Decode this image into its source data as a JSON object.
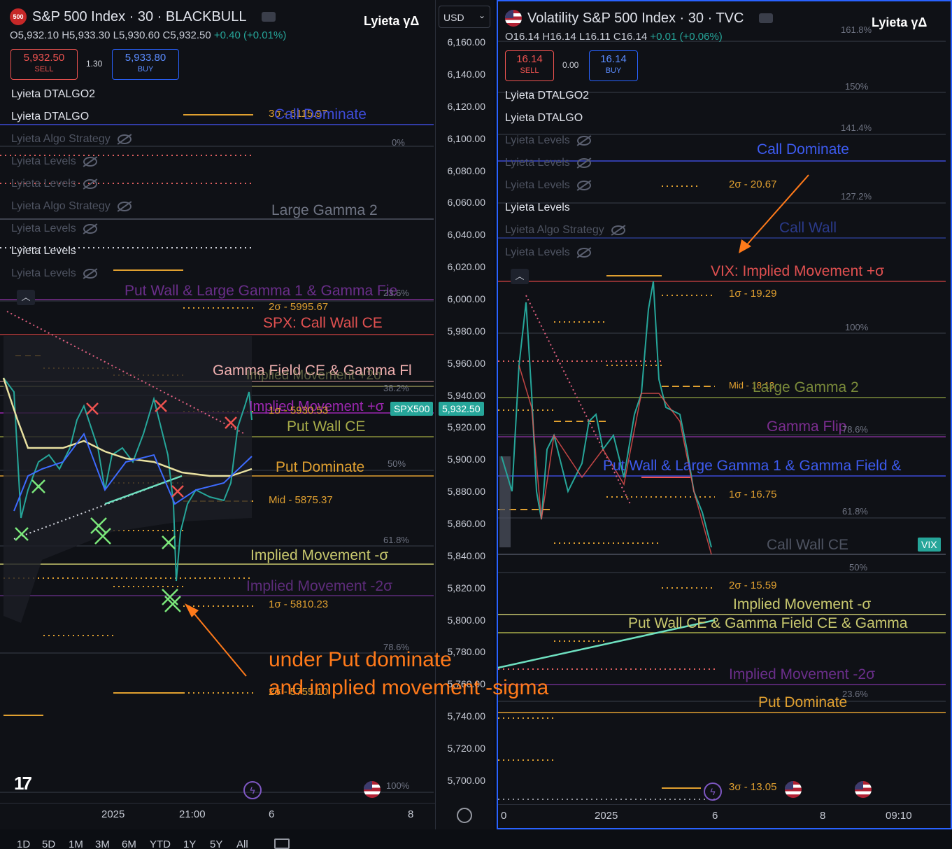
{
  "left": {
    "badge": "500",
    "title": "S&P 500 Index · 30 · BLACKBULL",
    "brand": "Lyieta γΔ",
    "ohlc": "O5,932.10 H5,933.30 L5,930.60 C5,932.50",
    "change": "+0.40 (+0.01%)",
    "sell": {
      "price": "5,932.50",
      "label": "SELL"
    },
    "spread": "1.30",
    "buy": {
      "price": "5,933.80",
      "label": "BUY"
    },
    "indicators": [
      "Lyieta DTALGO2",
      "Lyieta DTALGO",
      "Lyieta Algo Strategy",
      "Lyieta Levels",
      "Lyieta Levels",
      "Lyieta Algo Strategy",
      "Lyieta Levels",
      "Lyieta Levels",
      "Lyieta Levels"
    ],
    "levels": {
      "call_dominate": "Call Dominate",
      "call_dominate_val": "3σ - 6115.97",
      "large_gamma_2": "Large Gamma 2",
      "put_wall_gamma": "Put Wall & Large Gamma 1 & Gamma Fie",
      "two_sigma_up": "2σ - 5995.67",
      "spx_call_wall": "SPX: Call Wall CE",
      "gamma_field": "Gamma Field CE & Gamma Fl",
      "implied_plus2": "Implied Movement +2σ",
      "implied_plus": "Implied Movement +σ",
      "one_sigma_up": "1σ - 5930.53",
      "put_wall_ce": "Put Wall CE",
      "put_dominate": "Put Dominate",
      "mid": "Mid - 5875.37",
      "implied_minus": "Implied Movement -σ",
      "implied_minus2": "Implied Movement -2σ",
      "one_sigma_down": "1σ - 5810.23",
      "two_sigma_down": "2σ - 5755.10"
    },
    "fibs": [
      "0%",
      "23.6%",
      "38.2%",
      "50%",
      "61.8%",
      "78.6%",
      "100%"
    ],
    "last_symbol": "SPX500",
    "last_price": "5,932.50",
    "xticks": [
      "2025",
      "21:00",
      "6",
      "8"
    ]
  },
  "axis": {
    "currency": "USD",
    "ticks": [
      "6,160.00",
      "6,140.00",
      "6,120.00",
      "6,100.00",
      "6,080.00",
      "6,060.00",
      "6,040.00",
      "6,020.00",
      "6,000.00",
      "5,980.00",
      "5,960.00",
      "5,940.00",
      "5,920.00",
      "5,900.00",
      "5,880.00",
      "5,860.00",
      "5,840.00",
      "5,820.00",
      "5,800.00",
      "5,780.00",
      "5,760.00",
      "5,740.00",
      "5,720.00",
      "5,700.00"
    ]
  },
  "right": {
    "title": "Volatility S&P 500 Index · 30 · TVC",
    "brand": "Lyieta γΔ",
    "ohlc": "O16.14 H16.14 L16.11 C16.14",
    "change": "+0.01 (+0.06%)",
    "sell": {
      "price": "16.14",
      "label": "SELL"
    },
    "spread": "0.00",
    "buy": {
      "price": "16.14",
      "label": "BUY"
    },
    "indicators": [
      "Lyieta DTALGO2",
      "Lyieta DTALGO",
      "Lyieta Levels",
      "Lyieta Levels",
      "Lyieta Levels",
      "Lyieta Levels",
      "Lyieta Algo Strategy",
      "Lyieta Levels"
    ],
    "levels": {
      "call_dominate": "Call Dominate",
      "two_sigma_up": "2σ - 20.67",
      "call_wall": "Call Wall",
      "vix_implied": "VIX: Implied Movement +σ",
      "one_sigma_up": "1σ - 19.29",
      "mid": "Mid - 18.13",
      "large_gamma_2": "Large Gamma 2",
      "gamma_flip": "Gamma Flip",
      "put_wall_gamma": "Put Wall & Large Gamma 1 & Gamma Field &",
      "one_sigma_down": "1σ - 16.75",
      "call_wall_ce": "Call Wall CE",
      "two_sigma_down": "2σ - 15.59",
      "implied_minus": "Implied Movement -σ",
      "put_wall_ce_gamma": "Put Wall CE & Gamma Field CE & Gamma",
      "implied_minus2": "Implied Movement -2σ",
      "put_dominate": "Put Dominate",
      "three_sigma_down": "3σ - 13.05"
    },
    "fibs": [
      "161.8%",
      "150%",
      "141.4%",
      "127.2%",
      "100%",
      "78.6%",
      "61.8%",
      "50%",
      "23.6%"
    ],
    "last_symbol": "VIX",
    "xticks": [
      "0",
      "2025",
      "6",
      "8",
      "09:10"
    ]
  },
  "annotation": {
    "line1": "under Put dominate",
    "line2": "and implied movement -sigma"
  },
  "ranges": [
    "1D",
    "5D",
    "1M",
    "3M",
    "6M",
    "YTD",
    "1Y",
    "5Y",
    "All"
  ],
  "colors": {
    "accent": "#2962ff",
    "up": "#26a69a",
    "down": "#ef5350",
    "orange": "#ff7a1a",
    "gold": "#e0a030",
    "purple": "#9c27b0",
    "olive": "#c8c86e"
  }
}
